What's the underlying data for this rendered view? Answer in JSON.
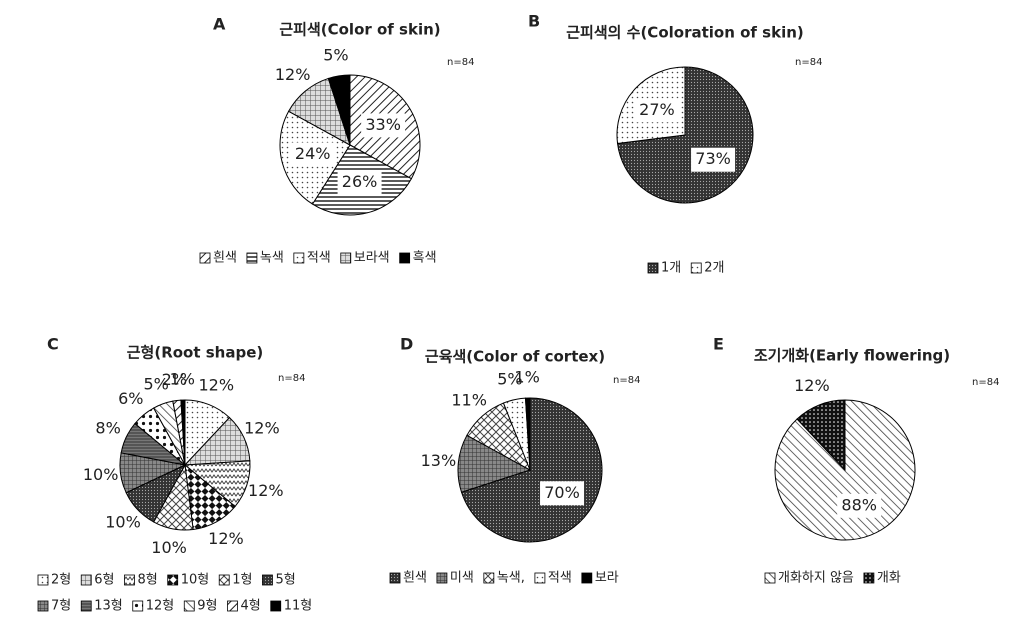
{
  "chart_data": [
    {
      "type": "pie",
      "panel": "A",
      "title": "근피색(Color of skin)",
      "note": "n=84",
      "categories": [
        "흰색",
        "녹색",
        "적색",
        "보라색",
        "흑색"
      ],
      "values": [
        33,
        26,
        24,
        12,
        5
      ],
      "value_labels": [
        "33%",
        "26%",
        "24%",
        "12%",
        "5%"
      ],
      "fills": [
        "diag",
        "hlines",
        "dots",
        "grid",
        "black"
      ]
    },
    {
      "type": "pie",
      "panel": "B",
      "title": "근피색의 수(Coloration of skin)",
      "note": "n=84",
      "categories": [
        "1개",
        "2개"
      ],
      "values": [
        73,
        27
      ],
      "value_labels": [
        "73%",
        "27%"
      ],
      "fills": [
        "dense",
        "dots"
      ]
    },
    {
      "type": "pie",
      "panel": "C",
      "title": "근형(Root shape)",
      "note": "n=84",
      "categories": [
        "2형",
        "6형",
        "8형",
        "10형",
        "1형",
        "5형",
        "7형",
        "13형",
        "12형",
        "9형",
        "4형",
        "11형"
      ],
      "values": [
        12,
        12,
        12,
        12,
        10,
        10,
        10,
        8,
        6,
        5,
        2,
        1
      ],
      "value_labels": [
        "12%",
        "12%",
        "12%",
        "12%",
        "10%",
        "10%",
        "10%",
        "8%",
        "6%",
        "5%",
        "2%",
        "1%"
      ],
      "fills": [
        "dots",
        "grid",
        "zigzag",
        "checker",
        "cross",
        "dense",
        "darkgrid",
        "darklines",
        "bigdots",
        "diagback",
        "diag",
        "black"
      ]
    },
    {
      "type": "pie",
      "panel": "D",
      "title": "근육색(Color of cortex)",
      "note": "n=84",
      "categories": [
        "흰색",
        "미색",
        "녹색,",
        "적색",
        "보라"
      ],
      "values": [
        70,
        13,
        11,
        5,
        1
      ],
      "value_labels": [
        "70%",
        "13%",
        "11%",
        "5%",
        "1%"
      ],
      "fills": [
        "dense",
        "darkgrid",
        "cross",
        "dots",
        "black"
      ]
    },
    {
      "type": "pie",
      "panel": "E",
      "title": "조기개화(Early flowering)",
      "note": "n=84",
      "categories": [
        "개화하지 않음",
        "개화"
      ],
      "values": [
        88,
        12
      ],
      "value_labels": [
        "88%",
        "12%"
      ],
      "fills": [
        "diagback",
        "bigdark"
      ]
    }
  ]
}
